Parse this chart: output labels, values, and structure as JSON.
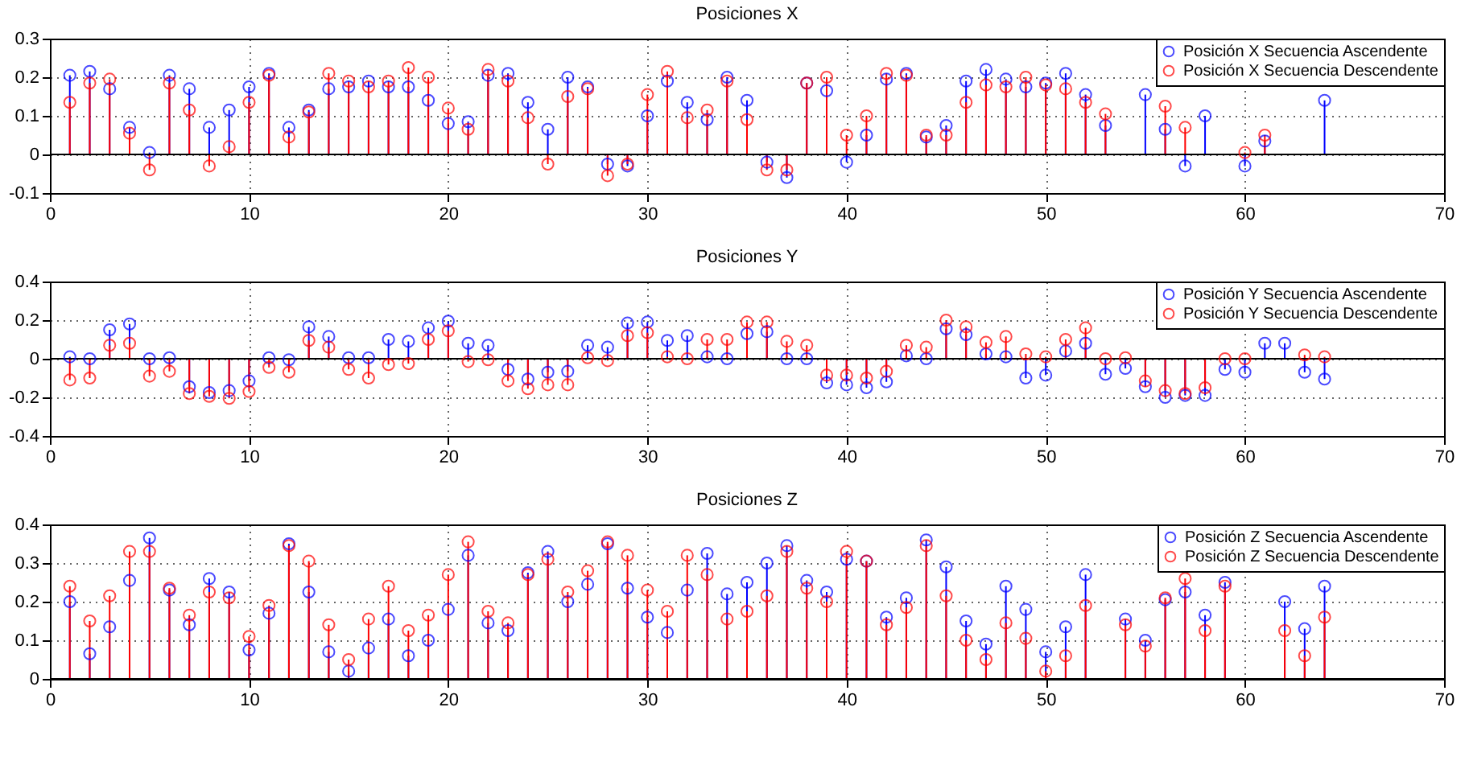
{
  "chart_data": [
    {
      "type": "lollipop",
      "title": "Posiciones X",
      "x": [
        1,
        2,
        3,
        4,
        5,
        6,
        7,
        8,
        9,
        10,
        11,
        12,
        13,
        14,
        15,
        16,
        17,
        18,
        19,
        20,
        21,
        22,
        23,
        24,
        25,
        26,
        27,
        28,
        29,
        30,
        31,
        32,
        33,
        34,
        35,
        36,
        37,
        38,
        39,
        40,
        41,
        42,
        43,
        44,
        45,
        46,
        47,
        48,
        49,
        50,
        51,
        52,
        53,
        54,
        55,
        56,
        57,
        58,
        59,
        60,
        61,
        62,
        63,
        64
      ],
      "xlim": [
        0,
        70
      ],
      "xticks": [
        0,
        10,
        20,
        30,
        40,
        50,
        60,
        70
      ],
      "ylim": [
        -0.1,
        0.3
      ],
      "yticks": [
        -0.1,
        0,
        0.1,
        0.2,
        0.3
      ],
      "grid": true,
      "legend": "top right",
      "marker": "circle",
      "series": [
        {
          "name": "Posición X Secuencia Ascendente",
          "color": "#0000ff",
          "values": [
            0.205,
            0.215,
            0.17,
            0.07,
            0.005,
            0.205,
            0.17,
            0.07,
            0.115,
            0.175,
            0.21,
            0.07,
            0.115,
            0.17,
            0.175,
            0.19,
            0.175,
            0.175,
            0.14,
            0.08,
            0.085,
            0.205,
            0.21,
            0.135,
            0.065,
            0.2,
            0.175,
            -0.025,
            -0.03,
            0.1,
            0.19,
            0.135,
            0.09,
            0.2,
            0.14,
            -0.02,
            -0.06,
            0.185,
            0.165,
            -0.02,
            0.05,
            0.195,
            0.21,
            0.045,
            0.075,
            0.19,
            0.22,
            0.195,
            0.175,
            0.185,
            0.21,
            0.155,
            0.075,
            null,
            0.155,
            0.065,
            -0.03,
            0.1,
            null,
            -0.03,
            0.035,
            null,
            null,
            0.14
          ]
        },
        {
          "name": "Posición X Secuencia Descendente",
          "color": "#ff0000",
          "values": [
            0.135,
            0.185,
            0.195,
            0.055,
            -0.04,
            0.185,
            0.115,
            -0.03,
            0.02,
            0.135,
            0.205,
            0.045,
            0.11,
            0.21,
            0.19,
            0.175,
            0.19,
            0.225,
            0.2,
            0.12,
            0.065,
            0.22,
            0.19,
            0.095,
            -0.025,
            0.15,
            0.17,
            -0.055,
            -0.025,
            0.155,
            0.215,
            0.095,
            0.115,
            0.19,
            0.09,
            -0.04,
            -0.04,
            0.185,
            0.2,
            0.05,
            0.1,
            0.21,
            0.205,
            0.05,
            0.05,
            0.135,
            0.18,
            0.175,
            0.2,
            0.18,
            0.17,
            0.135,
            0.105,
            null,
            null,
            0.125,
            0.07,
            null,
            null,
            0.005,
            0.05,
            null,
            null,
            null
          ]
        }
      ]
    },
    {
      "type": "lollipop",
      "title": "Posiciones Y",
      "x": [
        1,
        2,
        3,
        4,
        5,
        6,
        7,
        8,
        9,
        10,
        11,
        12,
        13,
        14,
        15,
        16,
        17,
        18,
        19,
        20,
        21,
        22,
        23,
        24,
        25,
        26,
        27,
        28,
        29,
        30,
        31,
        32,
        33,
        34,
        35,
        36,
        37,
        38,
        39,
        40,
        41,
        42,
        43,
        44,
        45,
        46,
        47,
        48,
        49,
        50,
        51,
        52,
        53,
        54,
        55,
        56,
        57,
        58,
        59,
        60,
        61,
        62,
        63,
        64
      ],
      "xlim": [
        0,
        70
      ],
      "xticks": [
        0,
        10,
        20,
        30,
        40,
        50,
        60,
        70
      ],
      "ylim": [
        -0.4,
        0.4
      ],
      "yticks": [
        -0.4,
        -0.2,
        0,
        0.2,
        0.4
      ],
      "grid": true,
      "legend": "top right",
      "marker": "circle",
      "series": [
        {
          "name": "Posición Y Secuencia Ascendente",
          "color": "#0000ff",
          "values": [
            0.01,
            0,
            0.15,
            0.18,
            0,
            0.005,
            -0.145,
            -0.175,
            -0.165,
            -0.115,
            0.005,
            -0.005,
            0.165,
            0.115,
            0.005,
            0.005,
            0.1,
            0.09,
            0.16,
            0.195,
            0.08,
            0.07,
            -0.055,
            -0.105,
            -0.07,
            -0.065,
            0.07,
            0.06,
            0.185,
            0.19,
            0.095,
            0.12,
            0.01,
            0,
            0.13,
            0.14,
            0,
            0,
            -0.125,
            -0.135,
            -0.15,
            -0.12,
            0.015,
            0,
            0.155,
            0.125,
            0.025,
            0.01,
            -0.1,
            -0.085,
            0.04,
            0.08,
            -0.08,
            -0.05,
            -0.145,
            -0.2,
            -0.19,
            -0.19,
            -0.055,
            -0.07,
            0.08,
            0.08,
            -0.07,
            -0.105
          ]
        },
        {
          "name": "Posición Y Secuencia Descendente",
          "color": "#ff0000",
          "values": [
            -0.11,
            -0.1,
            0.07,
            0.08,
            -0.09,
            -0.065,
            -0.18,
            -0.195,
            -0.205,
            -0.17,
            -0.045,
            -0.07,
            0.095,
            0.06,
            -0.055,
            -0.1,
            -0.03,
            -0.025,
            0.1,
            0.145,
            -0.015,
            -0.005,
            -0.115,
            -0.155,
            -0.135,
            -0.135,
            0.005,
            -0.01,
            0.12,
            0.135,
            0.01,
            0,
            0.1,
            0.1,
            0.19,
            0.19,
            0.09,
            0.07,
            -0.085,
            -0.085,
            -0.1,
            -0.065,
            0.07,
            0.06,
            0.2,
            0.165,
            0.085,
            0.115,
            0.025,
            0.01,
            0.1,
            0.16,
            0,
            0.005,
            -0.115,
            -0.165,
            -0.18,
            -0.15,
            0,
            0,
            null,
            null,
            0.02,
            0.01
          ]
        }
      ]
    },
    {
      "type": "lollipop",
      "title": "Posiciones Z",
      "x": [
        1,
        2,
        3,
        4,
        5,
        6,
        7,
        8,
        9,
        10,
        11,
        12,
        13,
        14,
        15,
        16,
        17,
        18,
        19,
        20,
        21,
        22,
        23,
        24,
        25,
        26,
        27,
        28,
        29,
        30,
        31,
        32,
        33,
        34,
        35,
        36,
        37,
        38,
        39,
        40,
        41,
        42,
        43,
        44,
        45,
        46,
        47,
        48,
        49,
        50,
        51,
        52,
        53,
        54,
        55,
        56,
        57,
        58,
        59,
        60,
        61,
        62,
        63,
        64
      ],
      "xlim": [
        0,
        70
      ],
      "xticks": [
        0,
        10,
        20,
        30,
        40,
        50,
        60,
        70
      ],
      "ylim": [
        0,
        0.4
      ],
      "yticks": [
        0,
        0.1,
        0.2,
        0.3,
        0.4
      ],
      "grid": true,
      "legend": "top right",
      "marker": "circle",
      "series": [
        {
          "name": "Posición Z Secuencia Ascendente",
          "color": "#0000ff",
          "values": [
            0.2,
            0.065,
            0.135,
            0.255,
            0.365,
            0.23,
            0.14,
            0.26,
            0.225,
            0.075,
            0.17,
            0.35,
            0.225,
            0.07,
            0.02,
            0.08,
            0.155,
            0.06,
            0.1,
            0.18,
            0.32,
            0.145,
            0.125,
            0.275,
            0.33,
            0.2,
            0.245,
            0.35,
            0.235,
            0.16,
            0.12,
            0.23,
            0.325,
            0.22,
            0.25,
            0.3,
            0.345,
            0.255,
            0.225,
            0.31,
            0.305,
            0.16,
            0.21,
            0.36,
            0.29,
            0.15,
            0.09,
            0.24,
            0.18,
            0.07,
            0.135,
            0.27,
            null,
            0.155,
            0.1,
            0.205,
            0.225,
            0.165,
            0.25,
            null,
            null,
            0.2,
            0.13,
            0.24
          ]
        },
        {
          "name": "Posición Z Secuencia Descendente",
          "color": "#ff0000",
          "values": [
            0.24,
            0.15,
            0.215,
            0.33,
            0.33,
            0.235,
            0.165,
            0.225,
            0.21,
            0.11,
            0.19,
            0.345,
            0.305,
            0.14,
            0.05,
            0.155,
            0.24,
            0.125,
            0.165,
            0.27,
            0.355,
            0.175,
            0.145,
            0.27,
            0.31,
            0.225,
            0.28,
            0.355,
            0.32,
            0.23,
            0.175,
            0.32,
            0.27,
            0.155,
            0.175,
            0.215,
            0.33,
            0.235,
            0.2,
            0.33,
            0.305,
            0.14,
            0.185,
            0.345,
            0.215,
            0.1,
            0.05,
            0.145,
            0.105,
            0.02,
            0.06,
            0.19,
            null,
            0.14,
            0.085,
            0.21,
            0.26,
            0.125,
            0.24,
            null,
            null,
            0.125,
            0.06,
            0.16
          ]
        }
      ]
    }
  ]
}
